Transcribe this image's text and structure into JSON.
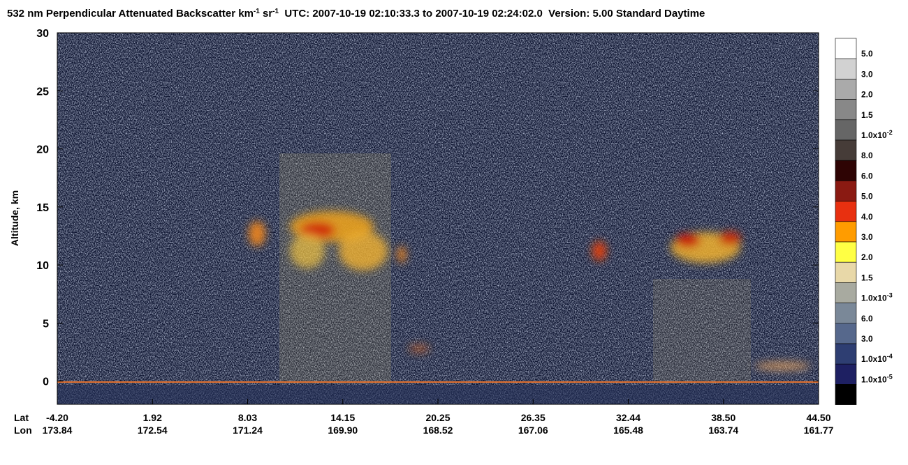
{
  "chart_data": {
    "type": "curtain",
    "title": [
      "532 nm Perpendicular Attenuated Backscatter km",
      "-1",
      " sr",
      "-1",
      "  UTC: 2007-10-19 02:10:33.3 to 2007-10-19 02:24:02.0  Version: 5.00 Standard Daytime"
    ],
    "y_label": "Altitude, km",
    "ylim": [
      -2,
      30
    ],
    "yticks": [
      0,
      5,
      10,
      15,
      20,
      25,
      30
    ],
    "x_rows": [
      "Lat",
      "Lon"
    ],
    "lat": [
      "-4.20",
      "1.92",
      "8.03",
      "14.15",
      "20.25",
      "26.35",
      "32.44",
      "38.50",
      "44.50"
    ],
    "lon": [
      "173.84",
      "172.54",
      "171.24",
      "169.90",
      "168.52",
      "167.06",
      "165.48",
      "163.74",
      "161.77"
    ],
    "colorbar": {
      "colors": [
        "#ffffff",
        "#d2d2d2",
        "#aaaaaa",
        "#888888",
        "#666666",
        "#463c38",
        "#2e0404",
        "#8a1a12",
        "#e83010",
        "#ff9c00",
        "#ffff44",
        "#e8d8a8",
        "#a8aaa0",
        "#7a8898",
        "#56688c",
        "#2e3e72",
        "#1e2062",
        "#000000"
      ],
      "labels": [
        {
          "text": "5.0"
        },
        {
          "text": "3.0"
        },
        {
          "text": "2.0"
        },
        {
          "text": "1.5"
        },
        {
          "text": "1.0x10",
          "exp": "-2"
        },
        {
          "text": "8.0"
        },
        {
          "text": "6.0"
        },
        {
          "text": "5.0"
        },
        {
          "text": "4.0"
        },
        {
          "text": "3.0"
        },
        {
          "text": "2.0"
        },
        {
          "text": "1.5"
        },
        {
          "text": "1.0x10",
          "exp": "-3"
        },
        {
          "text": "6.0"
        },
        {
          "text": "3.0"
        },
        {
          "text": "1.0x10",
          "exp": "-4"
        },
        {
          "text": "1.0x10",
          "exp": "-5"
        }
      ]
    }
  }
}
